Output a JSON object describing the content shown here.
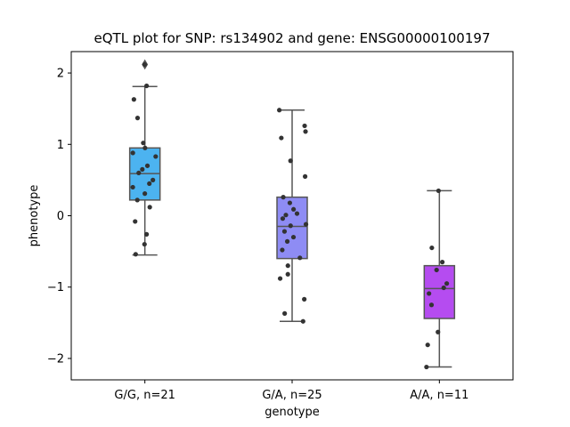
{
  "chart_data": {
    "type": "box",
    "title": "eQTL plot for SNP: rs134902 and gene: ENSG00000100197",
    "xlabel": "genotype",
    "ylabel": "phenotype",
    "ylim": [
      -2.3,
      2.3
    ],
    "yticks": [
      -2,
      -1,
      0,
      1,
      2
    ],
    "ytick_labels": [
      "−2",
      "−1",
      "0",
      "1",
      "2"
    ],
    "grid": false,
    "groups": [
      {
        "label": "G/G, n=21",
        "color": "#4cb3f0",
        "box": {
          "q1": 0.22,
          "median": 0.59,
          "q3": 0.95,
          "whisker_low": -0.55,
          "whisker_high": 1.81
        },
        "outliers": [
          2.12
        ],
        "points": [
          2.12,
          1.82,
          1.63,
          1.37,
          1.02,
          0.95,
          0.88,
          0.83,
          0.7,
          0.65,
          0.6,
          0.5,
          0.45,
          0.4,
          0.31,
          0.22,
          0.12,
          -0.08,
          -0.26,
          -0.4,
          -0.54
        ]
      },
      {
        "label": "G/A, n=25",
        "color": "#8e8cf4",
        "box": {
          "q1": -0.6,
          "median": -0.15,
          "q3": 0.26,
          "whisker_low": -1.48,
          "whisker_high": 1.48
        },
        "outliers": [],
        "points": [
          1.48,
          1.26,
          1.18,
          1.09,
          0.77,
          0.55,
          0.26,
          0.18,
          0.09,
          0.03,
          0.01,
          -0.04,
          -0.12,
          -0.14,
          -0.22,
          -0.3,
          -0.36,
          -0.48,
          -0.59,
          -0.7,
          -0.82,
          -0.88,
          -1.17,
          -1.37,
          -1.48
        ]
      },
      {
        "label": "A/A, n=11",
        "color": "#b54cf0",
        "box": {
          "q1": -1.44,
          "median": -1.02,
          "q3": -0.7,
          "whisker_low": -2.12,
          "whisker_high": 0.35
        },
        "outliers": [],
        "points": [
          0.35,
          -0.45,
          -0.65,
          -0.76,
          -0.95,
          -1.01,
          -1.09,
          -1.25,
          -1.63,
          -1.81,
          -2.12
        ]
      }
    ]
  }
}
